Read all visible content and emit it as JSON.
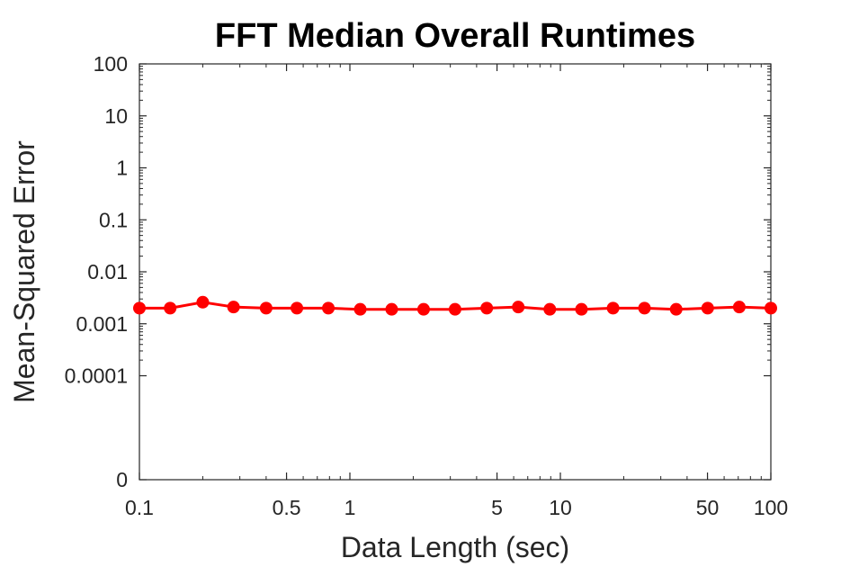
{
  "chart_data": {
    "type": "line",
    "title": "FFT Median Overall Runtimes",
    "xlabel": "Data Length (sec)",
    "ylabel": "Mean-Squared Error",
    "x_scale": "log",
    "y_scale": "log",
    "xlim": [
      0.1,
      100
    ],
    "ylim": [
      0,
      100
    ],
    "x_ticks": [
      {
        "value": 0.1,
        "label": "0.1"
      },
      {
        "value": 0.5,
        "label": "0.5"
      },
      {
        "value": 1,
        "label": "1"
      },
      {
        "value": 5,
        "label": "5"
      },
      {
        "value": 10,
        "label": "10"
      },
      {
        "value": 50,
        "label": "50"
      },
      {
        "value": 100,
        "label": "100"
      }
    ],
    "y_ticks": [
      {
        "value": 0,
        "label": "0"
      },
      {
        "value": 0.0001,
        "label": "0.0001"
      },
      {
        "value": 0.001,
        "label": "0.001"
      },
      {
        "value": 0.01,
        "label": "0.01"
      },
      {
        "value": 0.1,
        "label": "0.1"
      },
      {
        "value": 1,
        "label": "1"
      },
      {
        "value": 10,
        "label": "10"
      },
      {
        "value": 100,
        "label": "100"
      }
    ],
    "grid": false,
    "series": [
      {
        "color": "#ff0000",
        "marker": "circle",
        "x": [
          0.1,
          0.14,
          0.2,
          0.28,
          0.4,
          0.56,
          0.79,
          1.12,
          1.58,
          2.24,
          3.16,
          4.47,
          6.31,
          8.91,
          12.6,
          17.8,
          25.1,
          35.5,
          50.1,
          70.8,
          100
        ],
        "y": [
          0.002,
          0.002,
          0.0026,
          0.0021,
          0.002,
          0.002,
          0.002,
          0.0019,
          0.0019,
          0.0019,
          0.0019,
          0.002,
          0.0021,
          0.0019,
          0.0019,
          0.002,
          0.002,
          0.0019,
          0.002,
          0.0021,
          0.002
        ]
      }
    ]
  }
}
